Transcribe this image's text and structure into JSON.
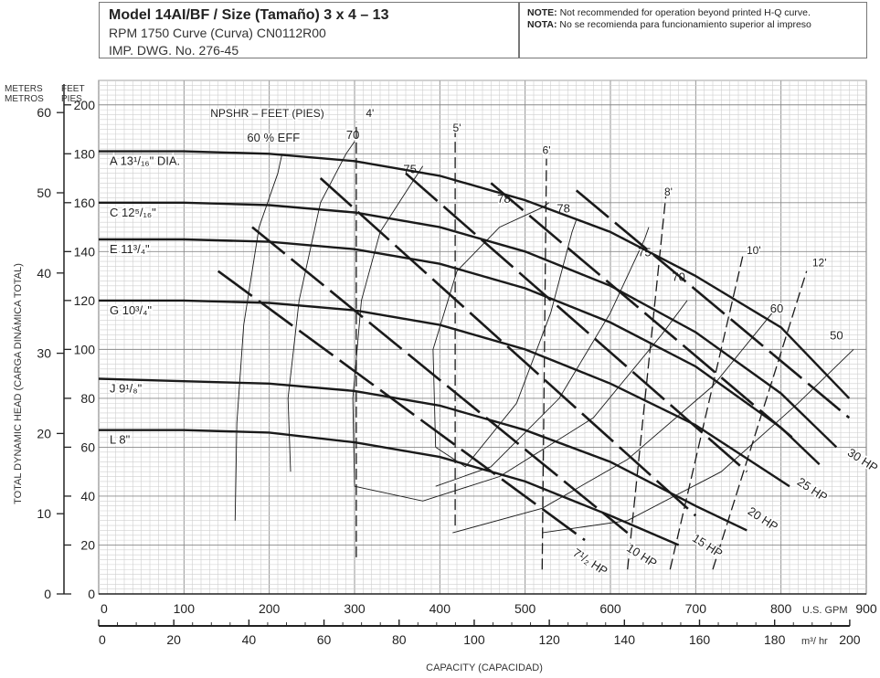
{
  "header": {
    "model": "Model 14AI/BF / Size (Tamaño)  3 x 4 – 13",
    "rpm_line": "RPM 1750 Curve (Curva) CN0112R00",
    "dwg_line": "IMP. DWG. No. 276-45",
    "note_label": "NOTE:",
    "note_text": "Not recommended for operation beyond printed H-Q curve.",
    "nota_label": "NOTA:",
    "nota_text": "No se recomienda para funcionamiento superior al impreso"
  },
  "colors": {
    "curve": "#1a1a1a",
    "grid_minor": "#cfcfcf",
    "grid_major": "#8a8a8a",
    "text": "#222222"
  },
  "chart_data": {
    "type": "line",
    "title": "Model 14AI/BF / Size (Tamaño)  3 x 4 – 13",
    "xlabel": "CAPACITY (CAPACIDAD)",
    "ylabel": "TOTAL DYNAMIC HEAD (CARGA DINÁMICA TOTAL)",
    "x_unit": "U.S. GPM",
    "x_unit2": "m³/ hr",
    "y_unit_left": "METERS METROS",
    "y_unit_right": "FEET PIES",
    "xlim": [
      0,
      900
    ],
    "ylim": [
      0,
      210
    ],
    "grid": true,
    "x_ticks": [
      0,
      100,
      200,
      300,
      400,
      500,
      600,
      700,
      800,
      900
    ],
    "x_ticks_m3hr": [
      0,
      20,
      40,
      60,
      80,
      100,
      120,
      140,
      160,
      180,
      200
    ],
    "y_ticks_feet": [
      0,
      20,
      40,
      60,
      80,
      100,
      120,
      140,
      160,
      180,
      200
    ],
    "y_ticks_meters": [
      0,
      10,
      20,
      30,
      40,
      50,
      60
    ],
    "impellers": [
      {
        "name": "A 13¹/₁₆\" DIA.",
        "x": [
          0,
          100,
          200,
          300,
          400,
          500,
          600,
          700,
          800,
          880
        ],
        "y": [
          181,
          181,
          180,
          177,
          171,
          161,
          148,
          130,
          109,
          80
        ]
      },
      {
        "name": "C 12⁵/₁₆\"",
        "x": [
          0,
          100,
          200,
          300,
          400,
          500,
          600,
          700,
          800,
          865
        ],
        "y": [
          160,
          160,
          159,
          156,
          150,
          140,
          126,
          107,
          82,
          60
        ]
      },
      {
        "name": "E 11³/₄\"",
        "x": [
          0,
          100,
          200,
          300,
          400,
          500,
          600,
          700,
          800,
          845
        ],
        "y": [
          145,
          145,
          144,
          141,
          135,
          125,
          111,
          93,
          68,
          53
        ]
      },
      {
        "name": "G 10³/₄\"",
        "x": [
          0,
          100,
          200,
          300,
          400,
          500,
          600,
          700,
          810
        ],
        "y": [
          120,
          120,
          119,
          116,
          110,
          100,
          86,
          69,
          44
        ]
      },
      {
        "name": "J 9¹/₈\"",
        "x": [
          0,
          100,
          200,
          300,
          400,
          500,
          600,
          700,
          760
        ],
        "y": [
          88,
          87,
          86,
          83,
          77,
          67,
          54,
          36,
          26
        ]
      },
      {
        "name": "L 8\"",
        "x": [
          0,
          100,
          200,
          300,
          400,
          500,
          600,
          680
        ],
        "y": [
          67,
          67,
          66,
          62,
          56,
          46,
          32,
          20
        ]
      }
    ],
    "efficiency": [
      {
        "label": "60 % EFF",
        "x": [
          160,
          162,
          170,
          188,
          210,
          215
        ],
        "y": [
          30,
          70,
          110,
          150,
          172,
          180
        ]
      },
      {
        "label": "70",
        "x": [
          225,
          222,
          235,
          260,
          290,
          300
        ],
        "y": [
          50,
          80,
          120,
          160,
          180,
          185
        ]
      },
      {
        "label": "75",
        "x": [
          300,
          298,
          308,
          330,
          365,
          380
        ],
        "y": [
          44,
          80,
          120,
          148,
          167,
          175
        ]
      },
      {
        "label": "78",
        "x": [
          395,
          392,
          420,
          470,
          520,
          528
        ],
        "y": [
          60,
          100,
          132,
          150,
          158,
          160
        ]
      },
      {
        "label": "78",
        "x": [
          395,
          430,
          490,
          530,
          555,
          560
        ],
        "y": [
          60,
          52,
          78,
          115,
          148,
          153
        ]
      },
      {
        "label": "75",
        "x": [
          395,
          460,
          540,
          600,
          640,
          645
        ],
        "y": [
          44,
          52,
          80,
          115,
          145,
          150
        ]
      },
      {
        "label": "70",
        "x": [
          300,
          380,
          470,
          580,
          660,
          690
        ],
        "y": [
          44,
          38,
          48,
          72,
          106,
          120
        ]
      },
      {
        "label": "60",
        "x": [
          415,
          520,
          620,
          720,
          790
        ],
        "y": [
          25,
          35,
          55,
          85,
          115
        ]
      },
      {
        "label": "50",
        "x": [
          520,
          620,
          730,
          820,
          885
        ],
        "y": [
          25,
          30,
          50,
          78,
          100
        ]
      }
    ],
    "npshr": [
      {
        "label": "4'",
        "x": [
          302,
          302
        ],
        "y": [
          15,
          193
        ]
      },
      {
        "label": "5'",
        "x": [
          418,
          418
        ],
        "y": [
          28,
          190
        ]
      },
      {
        "label": "6'",
        "x": [
          520,
          525
        ],
        "y": [
          10,
          178
        ]
      },
      {
        "label": "8'",
        "x": [
          620,
          665
        ],
        "y": [
          10,
          163
        ]
      },
      {
        "label": "10'",
        "x": [
          670,
          755
        ],
        "y": [
          10,
          138
        ]
      },
      {
        "label": "12'",
        "x": [
          720,
          830
        ],
        "y": [
          10,
          132
        ]
      }
    ],
    "npshr_title": "NPSHR – FEET (PIES)",
    "horsepower": [
      {
        "label": "7¹/₂ HP",
        "x": [
          140,
          570
        ],
        "y": [
          132,
          22
        ]
      },
      {
        "label": "10 HP",
        "x": [
          180,
          620
        ],
        "y": [
          150,
          25
        ]
      },
      {
        "label": "15 HP",
        "x": [
          260,
          700
        ],
        "y": [
          170,
          32
        ]
      },
      {
        "label": "20 HP",
        "x": [
          360,
          760
        ],
        "y": [
          172,
          50
        ]
      },
      {
        "label": "25 HP",
        "x": [
          460,
          820
        ],
        "y": [
          168,
          62
        ]
      },
      {
        "label": "30 HP",
        "x": [
          560,
          880
        ],
        "y": [
          165,
          72
        ]
      }
    ]
  }
}
